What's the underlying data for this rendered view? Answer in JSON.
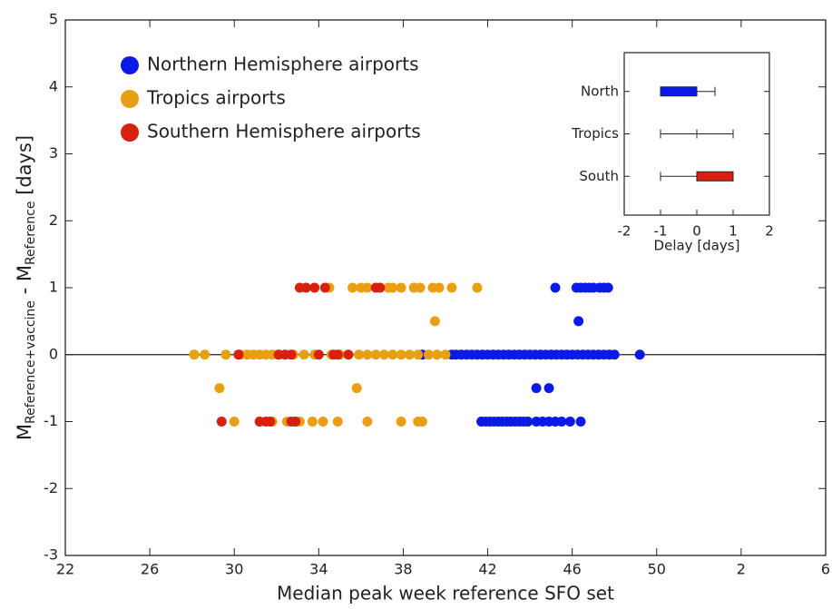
{
  "chart_data": [
    {
      "type": "scatter",
      "xlabel": "Median peak week reference SFO set",
      "ylabel_parts": [
        "M",
        "Reference+vaccine",
        " - M",
        "Reference",
        " [days]"
      ],
      "xlim": [
        22,
        58
      ],
      "ylim": [
        -3,
        5
      ],
      "xticks": [
        22,
        26,
        30,
        34,
        38,
        42,
        46,
        50,
        {
          "value": 54,
          "label": "2"
        },
        {
          "value": 58,
          "label": "6"
        }
      ],
      "yticks": [
        -3,
        -2,
        -1,
        0,
        1,
        2,
        3,
        4,
        5
      ],
      "legend": "top-left",
      "series": [
        {
          "name": "Northern Hemisphere airports",
          "color": "#0b1ae6",
          "x": [
            45.2,
            46.2,
            46.4,
            46.6,
            46.8,
            47.0,
            47.3,
            47.5,
            47.7,
            46.3,
            38.9,
            40.3,
            40.5,
            40.75,
            41.0,
            41.25,
            41.5,
            41.75,
            42.0,
            42.25,
            42.5,
            42.75,
            43.0,
            43.25,
            43.5,
            43.75,
            44.0,
            44.25,
            44.5,
            44.75,
            45.0,
            45.25,
            45.5,
            45.75,
            46.0,
            46.25,
            46.5,
            46.75,
            47.0,
            47.25,
            47.5,
            47.75,
            48.0,
            49.2,
            44.3,
            44.9,
            41.7,
            41.9,
            42.1,
            42.3,
            42.5,
            42.7,
            42.9,
            43.1,
            43.3,
            43.5,
            43.7,
            43.9,
            44.3,
            44.6,
            44.9,
            45.2,
            45.5,
            45.9,
            46.4
          ],
          "values": [
            1,
            1,
            1,
            1,
            1,
            1,
            1,
            1,
            1,
            0.5,
            0,
            0,
            0,
            0,
            0,
            0,
            0,
            0,
            0,
            0,
            0,
            0,
            0,
            0,
            0,
            0,
            0,
            0,
            0,
            0,
            0,
            0,
            0,
            0,
            0,
            0,
            0,
            0,
            0,
            0,
            0,
            0,
            0,
            0,
            -0.5,
            -0.5,
            -1,
            -1,
            -1,
            -1,
            -1,
            -1,
            -1,
            -1,
            -1,
            -1,
            -1,
            -1,
            -1,
            -1,
            -1,
            -1,
            -1,
            -1,
            -1
          ]
        },
        {
          "name": "Tropics airports",
          "color": "#e8a012",
          "x": [
            34.5,
            35.6,
            36.0,
            36.3,
            37.3,
            37.5,
            37.9,
            38.5,
            38.8,
            39.4,
            39.7,
            40.3,
            41.5,
            39.5,
            28.1,
            28.6,
            29.6,
            30.3,
            30.6,
            30.9,
            31.2,
            31.5,
            31.8,
            32.1,
            32.8,
            33.3,
            33.8,
            34.6,
            35.0,
            35.4,
            35.9,
            36.3,
            36.7,
            37.1,
            37.5,
            37.9,
            38.3,
            38.7,
            39.2,
            39.6,
            40.0,
            29.3,
            35.8,
            30.0,
            31.8,
            32.5,
            33.1,
            33.7,
            34.2,
            34.9,
            36.3,
            37.9,
            38.7,
            38.9
          ],
          "values": [
            1,
            1,
            1,
            1,
            1,
            1,
            1,
            1,
            1,
            1,
            1,
            1,
            1,
            0.5,
            0,
            0,
            0,
            0,
            0,
            0,
            0,
            0,
            0,
            0,
            0,
            0,
            0,
            0,
            0,
            0,
            0,
            0,
            0,
            0,
            0,
            0,
            0,
            0,
            0,
            0,
            0,
            -0.5,
            -0.5,
            -1,
            -1,
            -1,
            -1,
            -1,
            -1,
            -1,
            -1,
            -1,
            -1,
            -1
          ]
        },
        {
          "name": "Southern Hemisphere airports",
          "color": "#d8200e",
          "x": [
            33.1,
            33.4,
            33.8,
            34.3,
            36.7,
            36.9,
            30.2,
            32.1,
            32.4,
            32.7,
            34.0,
            34.7,
            34.9,
            35.4,
            29.4,
            31.2,
            31.5,
            31.7,
            32.7,
            32.9
          ],
          "values": [
            1,
            1,
            1,
            1,
            1,
            1,
            0,
            0,
            0,
            0,
            0,
            0,
            0,
            0,
            -1,
            -1,
            -1,
            -1,
            -1,
            -1
          ]
        }
      ]
    },
    {
      "type": "boxplot",
      "xlabel": "Delay [days]",
      "xlim": [
        -2,
        2
      ],
      "xticks": [
        -2,
        -1,
        0,
        1,
        2
      ],
      "categories": [
        "North",
        "Tropics",
        "South"
      ],
      "colors": [
        "#0b1ae6",
        "#ffffff",
        "#d8200e"
      ],
      "low": [
        -1,
        -1,
        -1
      ],
      "q1": [
        -1,
        0,
        0
      ],
      "median": [
        0,
        0,
        0
      ],
      "q3": [
        0,
        0,
        1
      ],
      "high": [
        0.5,
        1,
        1
      ]
    }
  ]
}
